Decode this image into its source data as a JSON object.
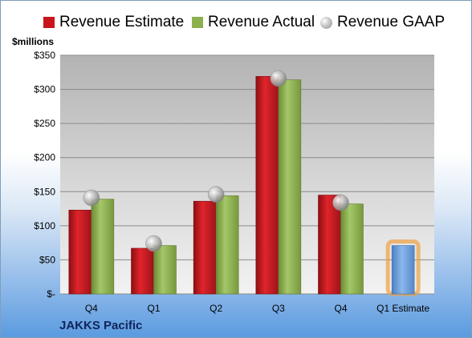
{
  "legend": {
    "estimate": "Revenue Estimate",
    "actual": "Revenue Actual",
    "gaap": "Revenue GAAP"
  },
  "unit_label": "$millions",
  "company": "JAKKS Pacific",
  "colors": {
    "estimate": "#c8151b",
    "actual": "#8db04e",
    "gaap": "#a5a5a5",
    "future_estimate": "#6fa0d8",
    "future_glow": "#f0a040"
  },
  "chart_data": {
    "type": "bar",
    "categories": [
      "Q4",
      "Q1",
      "Q2",
      "Q3",
      "Q4",
      "Q1 Estimate"
    ],
    "ylim": [
      0,
      350
    ],
    "yticks": [
      0,
      50,
      100,
      150,
      200,
      250,
      300,
      350
    ],
    "ytick_labels": [
      "$-",
      "$50",
      "$100",
      "$150",
      "$200",
      "$250",
      "$300",
      "$350"
    ],
    "grid": true,
    "legend_position": "top",
    "series": [
      {
        "name": "Revenue Estimate",
        "values": [
          123,
          67,
          136,
          319,
          145,
          null
        ]
      },
      {
        "name": "Revenue Actual",
        "values": [
          139,
          71,
          144,
          314,
          132,
          null
        ]
      },
      {
        "name": "Revenue GAAP",
        "values": [
          141,
          74,
          146,
          316,
          134,
          null
        ]
      }
    ],
    "future_estimate": {
      "category": "Q1 Estimate",
      "value": 71
    }
  }
}
